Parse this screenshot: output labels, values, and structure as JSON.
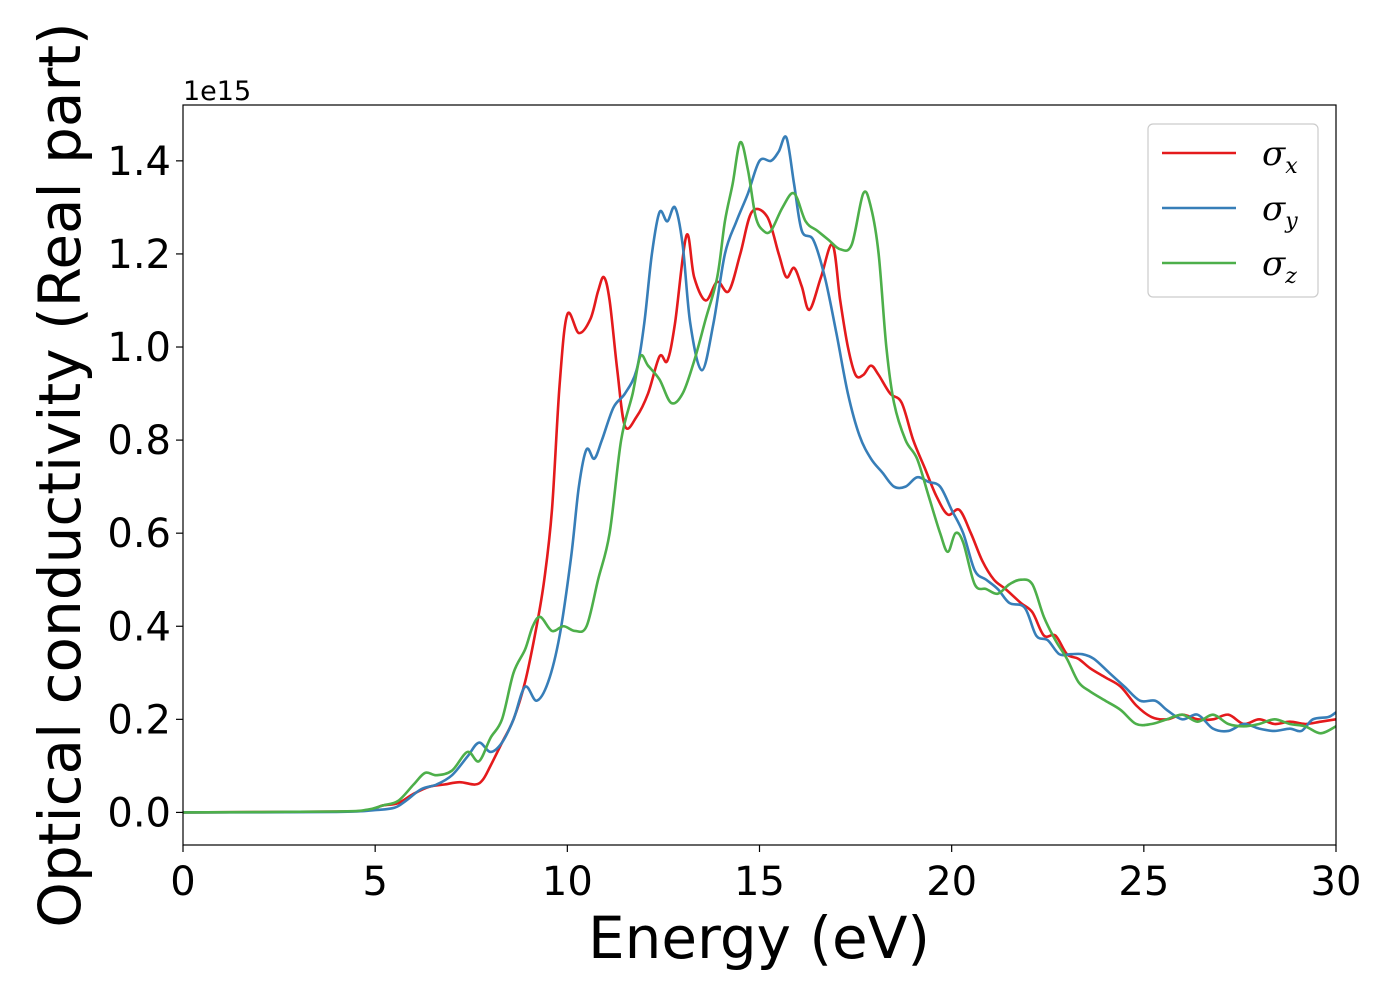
{
  "chart_data": {
    "type": "line",
    "xlabel": "Energy (eV)",
    "ylabel": "Optical conductivity (Real part)",
    "y_offset_label": "1e15",
    "xlim": [
      0,
      30
    ],
    "ylim": [
      -0.07,
      1.52
    ],
    "xticks": [
      0,
      5,
      10,
      15,
      20,
      25,
      30
    ],
    "xtick_labels": [
      "0",
      "5",
      "10",
      "15",
      "20",
      "25",
      "30"
    ],
    "yticks": [
      0.0,
      0.2,
      0.4,
      0.6,
      0.8,
      1.0,
      1.2,
      1.4
    ],
    "ytick_labels": [
      "0.0",
      "0.2",
      "0.4",
      "0.6",
      "0.8",
      "1.0",
      "1.2",
      "1.4"
    ],
    "grid": false,
    "legend_position": "top-right",
    "series": [
      {
        "name": "σx",
        "symbol": "σ",
        "subscript": "x",
        "color": "#e41a1c",
        "points": [
          [
            0,
            0
          ],
          [
            4,
            0.002
          ],
          [
            4.8,
            0.005
          ],
          [
            5.2,
            0.015
          ],
          [
            5.6,
            0.02
          ],
          [
            6.0,
            0.04
          ],
          [
            6.4,
            0.055
          ],
          [
            6.8,
            0.06
          ],
          [
            7.2,
            0.065
          ],
          [
            7.6,
            0.06
          ],
          [
            7.8,
            0.07
          ],
          [
            8.0,
            0.1
          ],
          [
            8.3,
            0.15
          ],
          [
            8.6,
            0.2
          ],
          [
            8.9,
            0.28
          ],
          [
            9.2,
            0.4
          ],
          [
            9.4,
            0.5
          ],
          [
            9.6,
            0.65
          ],
          [
            9.8,
            0.92
          ],
          [
            10.0,
            1.07
          ],
          [
            10.3,
            1.03
          ],
          [
            10.6,
            1.06
          ],
          [
            10.8,
            1.12
          ],
          [
            10.95,
            1.15
          ],
          [
            11.1,
            1.1
          ],
          [
            11.3,
            0.95
          ],
          [
            11.5,
            0.83
          ],
          [
            11.8,
            0.85
          ],
          [
            12.1,
            0.9
          ],
          [
            12.4,
            0.98
          ],
          [
            12.6,
            0.97
          ],
          [
            12.8,
            1.05
          ],
          [
            13.1,
            1.24
          ],
          [
            13.3,
            1.15
          ],
          [
            13.6,
            1.1
          ],
          [
            13.9,
            1.14
          ],
          [
            14.2,
            1.12
          ],
          [
            14.5,
            1.2
          ],
          [
            14.8,
            1.29
          ],
          [
            15.2,
            1.28
          ],
          [
            15.5,
            1.2
          ],
          [
            15.7,
            1.15
          ],
          [
            15.9,
            1.17
          ],
          [
            16.1,
            1.13
          ],
          [
            16.3,
            1.08
          ],
          [
            16.6,
            1.15
          ],
          [
            16.9,
            1.22
          ],
          [
            17.1,
            1.1
          ],
          [
            17.3,
            1.0
          ],
          [
            17.5,
            0.94
          ],
          [
            17.7,
            0.94
          ],
          [
            17.9,
            0.96
          ],
          [
            18.1,
            0.94
          ],
          [
            18.4,
            0.9
          ],
          [
            18.7,
            0.88
          ],
          [
            19.0,
            0.8
          ],
          [
            19.3,
            0.74
          ],
          [
            19.6,
            0.68
          ],
          [
            19.9,
            0.64
          ],
          [
            20.2,
            0.65
          ],
          [
            20.5,
            0.6
          ],
          [
            20.8,
            0.54
          ],
          [
            21.1,
            0.5
          ],
          [
            21.4,
            0.48
          ],
          [
            21.8,
            0.45
          ],
          [
            22.1,
            0.43
          ],
          [
            22.4,
            0.38
          ],
          [
            22.7,
            0.38
          ],
          [
            23.0,
            0.34
          ],
          [
            23.3,
            0.33
          ],
          [
            23.6,
            0.31
          ],
          [
            24.0,
            0.29
          ],
          [
            24.4,
            0.27
          ],
          [
            24.8,
            0.23
          ],
          [
            25.2,
            0.205
          ],
          [
            25.6,
            0.2
          ],
          [
            26.0,
            0.21
          ],
          [
            26.4,
            0.2
          ],
          [
            26.8,
            0.2
          ],
          [
            27.2,
            0.21
          ],
          [
            27.6,
            0.19
          ],
          [
            28.0,
            0.2
          ],
          [
            28.4,
            0.19
          ],
          [
            28.8,
            0.195
          ],
          [
            29.2,
            0.19
          ],
          [
            29.6,
            0.195
          ],
          [
            30.0,
            0.2
          ]
        ]
      },
      {
        "name": "σy",
        "symbol": "σ",
        "subscript": "y",
        "color": "#377eb8",
        "points": [
          [
            0,
            0
          ],
          [
            4,
            0.001
          ],
          [
            5.0,
            0.005
          ],
          [
            5.5,
            0.01
          ],
          [
            5.8,
            0.025
          ],
          [
            6.2,
            0.05
          ],
          [
            6.6,
            0.06
          ],
          [
            7.0,
            0.08
          ],
          [
            7.4,
            0.12
          ],
          [
            7.7,
            0.15
          ],
          [
            8.0,
            0.13
          ],
          [
            8.3,
            0.15
          ],
          [
            8.6,
            0.2
          ],
          [
            8.9,
            0.27
          ],
          [
            9.2,
            0.24
          ],
          [
            9.5,
            0.28
          ],
          [
            9.8,
            0.38
          ],
          [
            10.1,
            0.55
          ],
          [
            10.3,
            0.7
          ],
          [
            10.5,
            0.78
          ],
          [
            10.7,
            0.76
          ],
          [
            10.9,
            0.8
          ],
          [
            11.2,
            0.87
          ],
          [
            11.5,
            0.9
          ],
          [
            11.8,
            0.95
          ],
          [
            12.0,
            1.05
          ],
          [
            12.2,
            1.2
          ],
          [
            12.4,
            1.29
          ],
          [
            12.6,
            1.27
          ],
          [
            12.8,
            1.3
          ],
          [
            13.0,
            1.22
          ],
          [
            13.2,
            1.05
          ],
          [
            13.5,
            0.95
          ],
          [
            13.8,
            1.05
          ],
          [
            14.1,
            1.2
          ],
          [
            14.4,
            1.27
          ],
          [
            14.7,
            1.33
          ],
          [
            15.0,
            1.4
          ],
          [
            15.3,
            1.4
          ],
          [
            15.5,
            1.42
          ],
          [
            15.7,
            1.45
          ],
          [
            15.9,
            1.35
          ],
          [
            16.1,
            1.25
          ],
          [
            16.4,
            1.23
          ],
          [
            16.7,
            1.15
          ],
          [
            17.0,
            1.03
          ],
          [
            17.3,
            0.9
          ],
          [
            17.6,
            0.81
          ],
          [
            17.9,
            0.76
          ],
          [
            18.2,
            0.73
          ],
          [
            18.5,
            0.7
          ],
          [
            18.8,
            0.7
          ],
          [
            19.1,
            0.72
          ],
          [
            19.4,
            0.71
          ],
          [
            19.7,
            0.7
          ],
          [
            20.0,
            0.65
          ],
          [
            20.3,
            0.6
          ],
          [
            20.6,
            0.52
          ],
          [
            20.9,
            0.5
          ],
          [
            21.2,
            0.48
          ],
          [
            21.5,
            0.45
          ],
          [
            21.9,
            0.44
          ],
          [
            22.2,
            0.38
          ],
          [
            22.5,
            0.37
          ],
          [
            22.8,
            0.34
          ],
          [
            23.1,
            0.34
          ],
          [
            23.4,
            0.34
          ],
          [
            23.7,
            0.33
          ],
          [
            24.1,
            0.3
          ],
          [
            24.5,
            0.27
          ],
          [
            24.9,
            0.24
          ],
          [
            25.3,
            0.24
          ],
          [
            25.6,
            0.22
          ],
          [
            26.0,
            0.2
          ],
          [
            26.4,
            0.21
          ],
          [
            26.8,
            0.18
          ],
          [
            27.2,
            0.175
          ],
          [
            27.6,
            0.19
          ],
          [
            28.0,
            0.18
          ],
          [
            28.4,
            0.175
          ],
          [
            28.8,
            0.18
          ],
          [
            29.1,
            0.175
          ],
          [
            29.4,
            0.2
          ],
          [
            29.8,
            0.205
          ],
          [
            30.0,
            0.215
          ]
        ]
      },
      {
        "name": "σz",
        "symbol": "σ",
        "subscript": "z",
        "color": "#4daf4a",
        "points": [
          [
            0,
            0
          ],
          [
            4,
            0.002
          ],
          [
            4.8,
            0.006
          ],
          [
            5.2,
            0.015
          ],
          [
            5.6,
            0.025
          ],
          [
            6.0,
            0.06
          ],
          [
            6.3,
            0.085
          ],
          [
            6.6,
            0.08
          ],
          [
            7.0,
            0.09
          ],
          [
            7.4,
            0.13
          ],
          [
            7.7,
            0.11
          ],
          [
            8.0,
            0.16
          ],
          [
            8.3,
            0.2
          ],
          [
            8.6,
            0.3
          ],
          [
            8.9,
            0.35
          ],
          [
            9.1,
            0.4
          ],
          [
            9.3,
            0.42
          ],
          [
            9.6,
            0.39
          ],
          [
            9.9,
            0.4
          ],
          [
            10.2,
            0.39
          ],
          [
            10.5,
            0.4
          ],
          [
            10.8,
            0.5
          ],
          [
            11.1,
            0.6
          ],
          [
            11.4,
            0.8
          ],
          [
            11.7,
            0.9
          ],
          [
            11.9,
            0.98
          ],
          [
            12.1,
            0.96
          ],
          [
            12.4,
            0.93
          ],
          [
            12.7,
            0.88
          ],
          [
            13.0,
            0.9
          ],
          [
            13.3,
            0.97
          ],
          [
            13.6,
            1.06
          ],
          [
            13.9,
            1.15
          ],
          [
            14.1,
            1.27
          ],
          [
            14.3,
            1.35
          ],
          [
            14.5,
            1.44
          ],
          [
            14.7,
            1.38
          ],
          [
            14.9,
            1.28
          ],
          [
            15.1,
            1.25
          ],
          [
            15.3,
            1.25
          ],
          [
            15.6,
            1.3
          ],
          [
            15.9,
            1.33
          ],
          [
            16.2,
            1.27
          ],
          [
            16.5,
            1.25
          ],
          [
            16.8,
            1.23
          ],
          [
            17.1,
            1.21
          ],
          [
            17.4,
            1.22
          ],
          [
            17.7,
            1.33
          ],
          [
            17.9,
            1.3
          ],
          [
            18.1,
            1.2
          ],
          [
            18.3,
            1.0
          ],
          [
            18.5,
            0.88
          ],
          [
            18.8,
            0.8
          ],
          [
            19.1,
            0.76
          ],
          [
            19.4,
            0.68
          ],
          [
            19.7,
            0.6
          ],
          [
            19.9,
            0.56
          ],
          [
            20.1,
            0.6
          ],
          [
            20.3,
            0.58
          ],
          [
            20.6,
            0.49
          ],
          [
            20.9,
            0.48
          ],
          [
            21.2,
            0.47
          ],
          [
            21.5,
            0.49
          ],
          [
            21.8,
            0.5
          ],
          [
            22.1,
            0.49
          ],
          [
            22.4,
            0.42
          ],
          [
            22.7,
            0.37
          ],
          [
            23.0,
            0.33
          ],
          [
            23.3,
            0.28
          ],
          [
            23.6,
            0.26
          ],
          [
            24.0,
            0.24
          ],
          [
            24.4,
            0.22
          ],
          [
            24.8,
            0.19
          ],
          [
            25.2,
            0.19
          ],
          [
            25.6,
            0.2
          ],
          [
            26.0,
            0.21
          ],
          [
            26.4,
            0.195
          ],
          [
            26.8,
            0.21
          ],
          [
            27.2,
            0.19
          ],
          [
            27.6,
            0.185
          ],
          [
            28.0,
            0.19
          ],
          [
            28.4,
            0.2
          ],
          [
            28.8,
            0.19
          ],
          [
            29.2,
            0.185
          ],
          [
            29.6,
            0.17
          ],
          [
            30.0,
            0.185
          ]
        ]
      }
    ]
  }
}
